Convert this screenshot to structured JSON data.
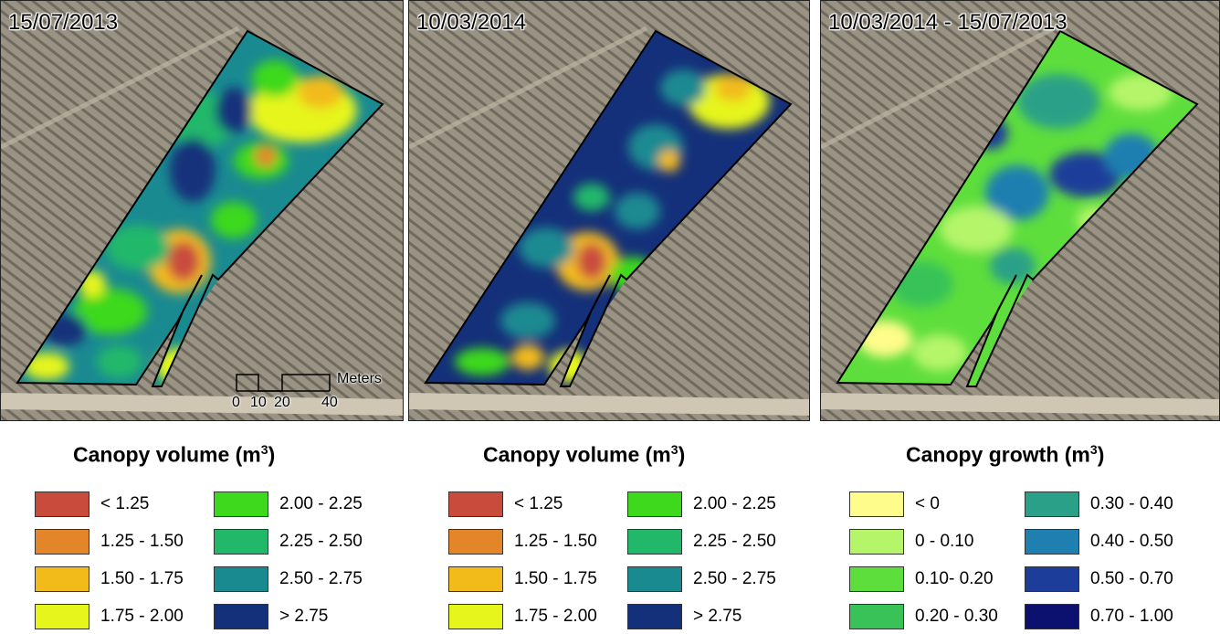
{
  "panels": [
    {
      "title": "15/07/2013"
    },
    {
      "title": "10/03/2014"
    },
    {
      "title": "10/03/2014 - 15/07/2013"
    }
  ],
  "scalebar": {
    "units": "Meters",
    "ticks": [
      "0",
      "10",
      "20",
      "40"
    ]
  },
  "legends": [
    {
      "title": "Canopy volume (m",
      "title_sup": "3",
      "title_end": ")",
      "items": [
        {
          "label": "< 1.25",
          "color": "#c94b3c"
        },
        {
          "label": "1.25 - 1.50",
          "color": "#e3862a"
        },
        {
          "label": "1.50 - 1.75",
          "color": "#f2bb1a"
        },
        {
          "label": "1.75 - 2.00",
          "color": "#e6f51c"
        },
        {
          "label": "2.00 - 2.25",
          "color": "#3ed91c"
        },
        {
          "label": "2.25 - 2.50",
          "color": "#21b86a"
        },
        {
          "label": "2.50 - 2.75",
          "color": "#1a8a91"
        },
        {
          "label": "> 2.75",
          "color": "#14307a"
        }
      ]
    },
    {
      "title": "Canopy volume (m",
      "title_sup": "3",
      "title_end": ")",
      "items": [
        {
          "label": "< 1.25",
          "color": "#c94b3c"
        },
        {
          "label": "1.25 - 1.50",
          "color": "#e3862a"
        },
        {
          "label": "1.50 - 1.75",
          "color": "#f2bb1a"
        },
        {
          "label": "1.75 - 2.00",
          "color": "#e6f51c"
        },
        {
          "label": "2.00 - 2.25",
          "color": "#3ed91c"
        },
        {
          "label": "2.25 - 2.50",
          "color": "#21b86a"
        },
        {
          "label": "2.50 - 2.75",
          "color": "#1a8a91"
        },
        {
          "label": "> 2.75",
          "color": "#14307a"
        }
      ]
    },
    {
      "title": "Canopy growth (m",
      "title_sup": "3",
      "title_end": ")",
      "items": [
        {
          "label": "< 0",
          "color": "#fefc8a"
        },
        {
          "label": "0 - 0.10",
          "color": "#b5f56a"
        },
        {
          "label": "0.10- 0.20",
          "color": "#5ede3c"
        },
        {
          "label": "0.20 - 0.30",
          "color": "#38c258"
        },
        {
          "label": "0.30 - 0.40",
          "color": "#2aa088"
        },
        {
          "label": "0.40 - 0.50",
          "color": "#1f7fb0"
        },
        {
          "label": "0.50 - 0.70",
          "color": "#1c3e9a"
        },
        {
          "label": "0.70 - 1.00",
          "color": "#0c1170"
        }
      ]
    }
  ]
}
